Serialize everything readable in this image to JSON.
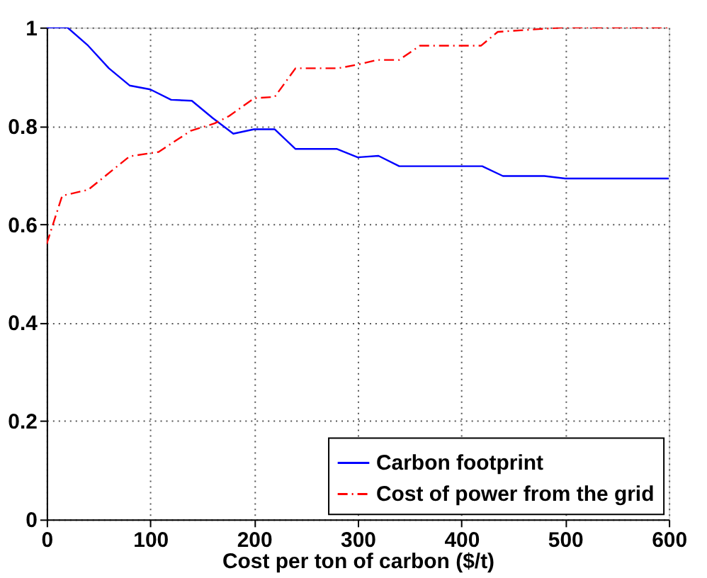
{
  "chart_data": {
    "type": "line",
    "xlabel": "Cost per ton of carbon ($/t)",
    "xlim": [
      0,
      600
    ],
    "xticks": [
      0,
      100,
      200,
      300,
      400,
      500,
      600
    ],
    "ylim": [
      0,
      1
    ],
    "yticks": [
      0,
      0.2,
      0.4,
      0.6,
      0.8,
      1
    ],
    "grid": true,
    "legend": "bottom right",
    "series": [
      {
        "name": "Carbon footprint",
        "color": "#0000ff",
        "line_style": "solid",
        "x": [
          0,
          20,
          40,
          60,
          80,
          100,
          120,
          140,
          160,
          180,
          200,
          220,
          240,
          280,
          300,
          320,
          340,
          420,
          440,
          480,
          500,
          600
        ],
        "values": [
          1,
          1,
          0.963,
          0.917,
          0.882,
          0.874,
          0.853,
          0.851,
          0.816,
          0.784,
          0.793,
          0.793,
          0.753,
          0.753,
          0.736,
          0.739,
          0.718,
          0.718,
          0.698,
          0.698,
          0.693,
          0.693
        ]
      },
      {
        "name": "Cost of power from the grid",
        "color": "#ff0000",
        "line_style": "dashdot",
        "x": [
          0,
          15,
          40,
          80,
          108,
          139,
          162,
          176,
          200,
          220,
          240,
          281,
          301,
          319,
          340,
          360,
          419,
          435,
          499,
          600
        ],
        "values": [
          0.56,
          0.658,
          0.67,
          0.738,
          0.747,
          0.79,
          0.805,
          0.82,
          0.856,
          0.859,
          0.917,
          0.917,
          0.925,
          0.934,
          0.934,
          0.963,
          0.963,
          0.991,
          1,
          1
        ]
      }
    ]
  }
}
